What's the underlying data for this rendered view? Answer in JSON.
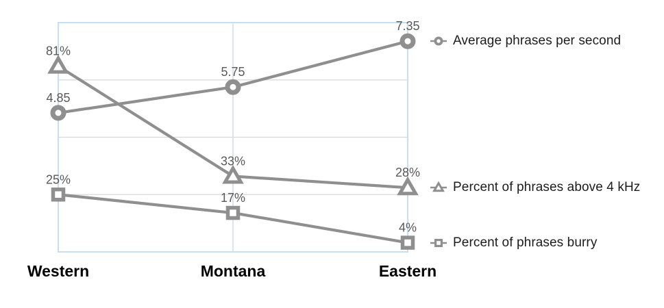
{
  "chart_data": {
    "type": "line",
    "categories": [
      "Western",
      "Montana",
      "Eastern"
    ],
    "series": [
      {
        "name": "Average phrases per second",
        "marker": "circle",
        "axis": "phrases",
        "values": [
          4.85,
          5.75,
          7.35
        ],
        "labels": [
          "4.85",
          "5.75",
          "7.35"
        ]
      },
      {
        "name": "Percent of phrases above 4 kHz",
        "marker": "triangle",
        "axis": "percent",
        "values": [
          81,
          33,
          28
        ],
        "labels": [
          "81%",
          "33%",
          "28%"
        ]
      },
      {
        "name": "Percent of phrases burry",
        "marker": "square",
        "axis": "percent",
        "values": [
          25,
          17,
          4
        ],
        "labels": [
          "25%",
          "17%",
          "4%"
        ]
      }
    ],
    "axes": {
      "percent": {
        "min": 0,
        "max": 100
      },
      "phrases": {
        "min": 0,
        "max": 8
      }
    },
    "grid": {
      "horizontal": true,
      "vertical": true,
      "h_divisions": 4
    },
    "legend_position": "right",
    "colors": {
      "series": "#8f8f8f",
      "marker_fill": "#ffffff",
      "data_label": "#595959",
      "legend_text": "#1c1c1c",
      "category_label": "#000000",
      "grid_blue": "#c7dff1",
      "grid_gray": "#d9d9d9",
      "background": "#ffffff"
    }
  }
}
